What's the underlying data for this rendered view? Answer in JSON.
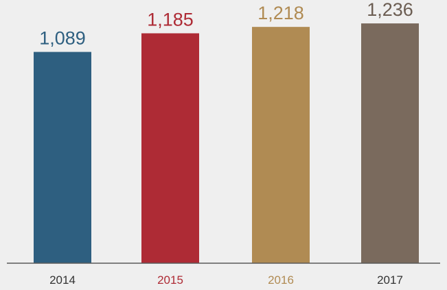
{
  "chart_data": {
    "type": "bar",
    "categories": [
      "2014",
      "2015",
      "2016",
      "2017"
    ],
    "values": [
      1089,
      1185,
      1218,
      1236
    ],
    "value_labels": [
      "1,089",
      "1,185",
      "1,218",
      "1,236"
    ],
    "title": "",
    "xlabel": "",
    "ylabel": "",
    "ylim": [
      0,
      1300
    ],
    "grid": false,
    "legend": "none",
    "colors": {
      "bars": [
        "#2e5f80",
        "#ae2b35",
        "#b08b53",
        "#7a6a5d"
      ],
      "value_labels": [
        "#2e5f80",
        "#ae2b35",
        "#b08b53",
        "#6b5d52"
      ],
      "tick_labels": [
        "#333333",
        "#ae2b35",
        "#b08b53",
        "#333333"
      ],
      "axis": "#5a5a5a"
    }
  }
}
